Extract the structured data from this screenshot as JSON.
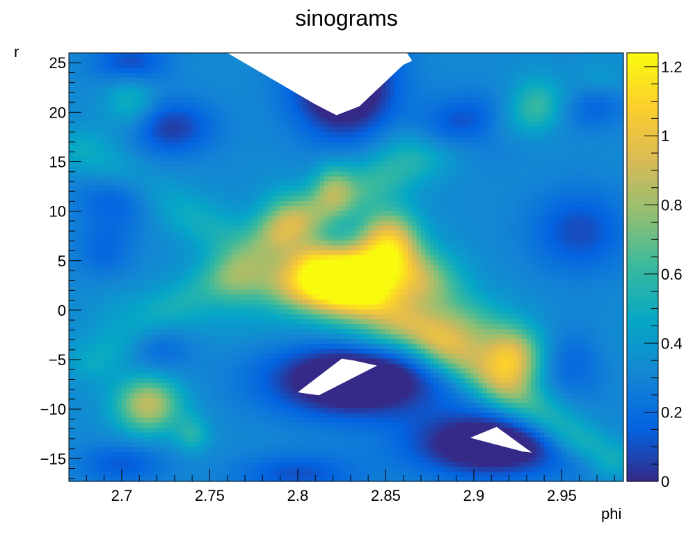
{
  "chart_data": {
    "type": "heatmap",
    "title": "sinograms",
    "xlabel": "phi",
    "ylabel": "r",
    "xlim": [
      2.67,
      2.985
    ],
    "ylim": [
      -17.3,
      26
    ],
    "x_ticks": [
      2.7,
      2.75,
      2.8,
      2.85,
      2.9,
      2.95
    ],
    "x_tick_labels": [
      "2.7",
      "2.75",
      "2.8",
      "2.85",
      "2.9",
      "2.95"
    ],
    "y_ticks": [
      -15,
      -10,
      -5,
      0,
      5,
      10,
      15,
      20,
      25
    ],
    "y_tick_labels": [
      "−15",
      "−10",
      "−5",
      "0",
      "5",
      "10",
      "15",
      "20",
      "25"
    ],
    "colorbar": {
      "range": [
        0,
        1.24
      ],
      "ticks": [
        0,
        0.2,
        0.4,
        0.6,
        0.8,
        1,
        1.2
      ],
      "tick_labels": [
        "0",
        "0.2",
        "0.4",
        "0.6",
        "0.8",
        "1",
        "1.2"
      ],
      "palette": [
        "#352a87",
        "#0363e1",
        "#1485d4",
        "#06a7c6",
        "#38b99e",
        "#92bf73",
        "#d9ba56",
        "#fcce2e",
        "#f9fb0e"
      ]
    },
    "background_value": 0.33,
    "features": [
      {
        "kind": "peak",
        "x": 2.832,
        "y": 3.5,
        "sx": 0.017,
        "sy": 2.2,
        "value": 0.82
      },
      {
        "kind": "peak",
        "x": 2.852,
        "y": 6.8,
        "sx": 0.012,
        "sy": 2.4,
        "value": 0.68
      },
      {
        "kind": "peak",
        "x": 2.87,
        "y": 3.0,
        "sx": 0.015,
        "sy": 2.2,
        "value": 0.45
      },
      {
        "kind": "peak",
        "x": 2.806,
        "y": 2.4,
        "sx": 0.02,
        "sy": 1.8,
        "value": 0.45
      },
      {
        "kind": "peak",
        "x": 2.922,
        "y": -5.0,
        "sx": 0.012,
        "sy": 2.2,
        "value": 0.62
      },
      {
        "kind": "peak",
        "x": 2.89,
        "y": -2.0,
        "sx": 0.018,
        "sy": 2.5,
        "value": 0.38
      },
      {
        "kind": "peak",
        "x": 2.715,
        "y": -9.5,
        "sx": 0.013,
        "sy": 2.0,
        "value": 0.55
      },
      {
        "kind": "peak",
        "x": 2.74,
        "y": -12.5,
        "sx": 0.007,
        "sy": 1.3,
        "value": 0.22
      },
      {
        "kind": "peak",
        "x": 2.82,
        "y": 12.5,
        "sx": 0.008,
        "sy": 1.8,
        "value": 0.3
      },
      {
        "kind": "peak",
        "x": 2.795,
        "y": 9.0,
        "sx": 0.012,
        "sy": 2.2,
        "value": 0.32
      },
      {
        "kind": "peak",
        "x": 2.765,
        "y": 3.0,
        "sx": 0.012,
        "sy": 1.8,
        "value": 0.25
      },
      {
        "kind": "peak",
        "x": 2.705,
        "y": 21.0,
        "sx": 0.01,
        "sy": 2.0,
        "value": 0.22
      },
      {
        "kind": "peak",
        "x": 2.935,
        "y": 21.0,
        "sx": 0.01,
        "sy": 2.0,
        "value": 0.2
      },
      {
        "kind": "ridge",
        "x0": 2.81,
        "y0": 5.0,
        "x1": 2.975,
        "y1": -15.0,
        "w": 1.5,
        "value": 0.35
      },
      {
        "kind": "ridge",
        "x0": 2.68,
        "y0": 16.0,
        "x1": 2.845,
        "y1": -2.0,
        "w": 1.7,
        "value": 0.18
      },
      {
        "kind": "ridge",
        "x0": 2.685,
        "y0": -5.0,
        "x1": 2.86,
        "y1": 16.0,
        "w": 1.6,
        "value": 0.16
      },
      {
        "kind": "ridge",
        "x0": 2.79,
        "y0": 8.0,
        "x1": 2.97,
        "y1": 23.0,
        "w": 1.5,
        "value": 0.14
      },
      {
        "kind": "ridge",
        "x0": 2.7,
        "y0": 0.0,
        "x1": 2.97,
        "y1": -4.0,
        "w": 2.0,
        "value": 0.06
      },
      {
        "kind": "dip",
        "x": 2.826,
        "y": 23.0,
        "sx": 0.02,
        "sy": 3.8,
        "value": -0.55
      },
      {
        "kind": "dip",
        "x": 2.832,
        "y": -7.0,
        "sx": 0.034,
        "sy": 2.6,
        "value": -0.55
      },
      {
        "kind": "dip",
        "x": 2.91,
        "y": -13.5,
        "sx": 0.032,
        "sy": 2.3,
        "value": -0.5
      },
      {
        "kind": "dip",
        "x": 2.728,
        "y": 18.5,
        "sx": 0.018,
        "sy": 2.0,
        "value": -0.28
      },
      {
        "kind": "dip",
        "x": 2.898,
        "y": 18.5,
        "sx": 0.018,
        "sy": 2.2,
        "value": -0.28
      },
      {
        "kind": "dip",
        "x": 2.7,
        "y": 11.5,
        "sx": 0.018,
        "sy": 2.2,
        "value": -0.22
      },
      {
        "kind": "dip",
        "x": 2.96,
        "y": 8.0,
        "sx": 0.02,
        "sy": 3.0,
        "value": -0.24
      },
      {
        "kind": "dip",
        "x": 2.72,
        "y": -3.5,
        "sx": 0.014,
        "sy": 2.0,
        "value": -0.18
      },
      {
        "kind": "dip",
        "x": 2.955,
        "y": -5.0,
        "sx": 0.016,
        "sy": 2.5,
        "value": -0.2
      },
      {
        "kind": "dip",
        "x": 2.705,
        "y": 25.0,
        "sx": 0.015,
        "sy": 1.5,
        "value": -0.25
      },
      {
        "kind": "dip",
        "x": 2.965,
        "y": 21.0,
        "sx": 0.015,
        "sy": 1.8,
        "value": -0.22
      },
      {
        "kind": "dip",
        "x": 2.8,
        "y": -16.5,
        "sx": 0.025,
        "sy": 1.5,
        "value": -0.22
      },
      {
        "kind": "dip",
        "x": 2.7,
        "y": -15.5,
        "sx": 0.018,
        "sy": 1.5,
        "value": -0.2
      },
      {
        "kind": "dip",
        "x": 2.69,
        "y": 6.0,
        "sx": 0.012,
        "sy": 2.0,
        "value": -0.15
      },
      {
        "kind": "dip",
        "x": 2.97,
        "y": -15.5,
        "sx": 0.012,
        "sy": 1.5,
        "value": -0.15
      }
    ],
    "empty_regions": [
      {
        "name": "top",
        "points": [
          [
            2.76,
            26
          ],
          [
            2.81,
            20.8
          ],
          [
            2.822,
            19.7
          ],
          [
            2.835,
            20.6
          ],
          [
            2.86,
            24.8
          ],
          [
            2.865,
            25.2
          ],
          [
            2.862,
            26
          ]
        ]
      },
      {
        "name": "mid",
        "points": [
          [
            2.8,
            -8.3
          ],
          [
            2.812,
            -8.6
          ],
          [
            2.845,
            -5.6
          ],
          [
            2.832,
            -5.1
          ],
          [
            2.825,
            -4.9
          ]
        ]
      },
      {
        "name": "low",
        "points": [
          [
            2.898,
            -12.9
          ],
          [
            2.913,
            -11.8
          ],
          [
            2.933,
            -14.4
          ],
          [
            2.928,
            -14.3
          ]
        ]
      }
    ]
  }
}
